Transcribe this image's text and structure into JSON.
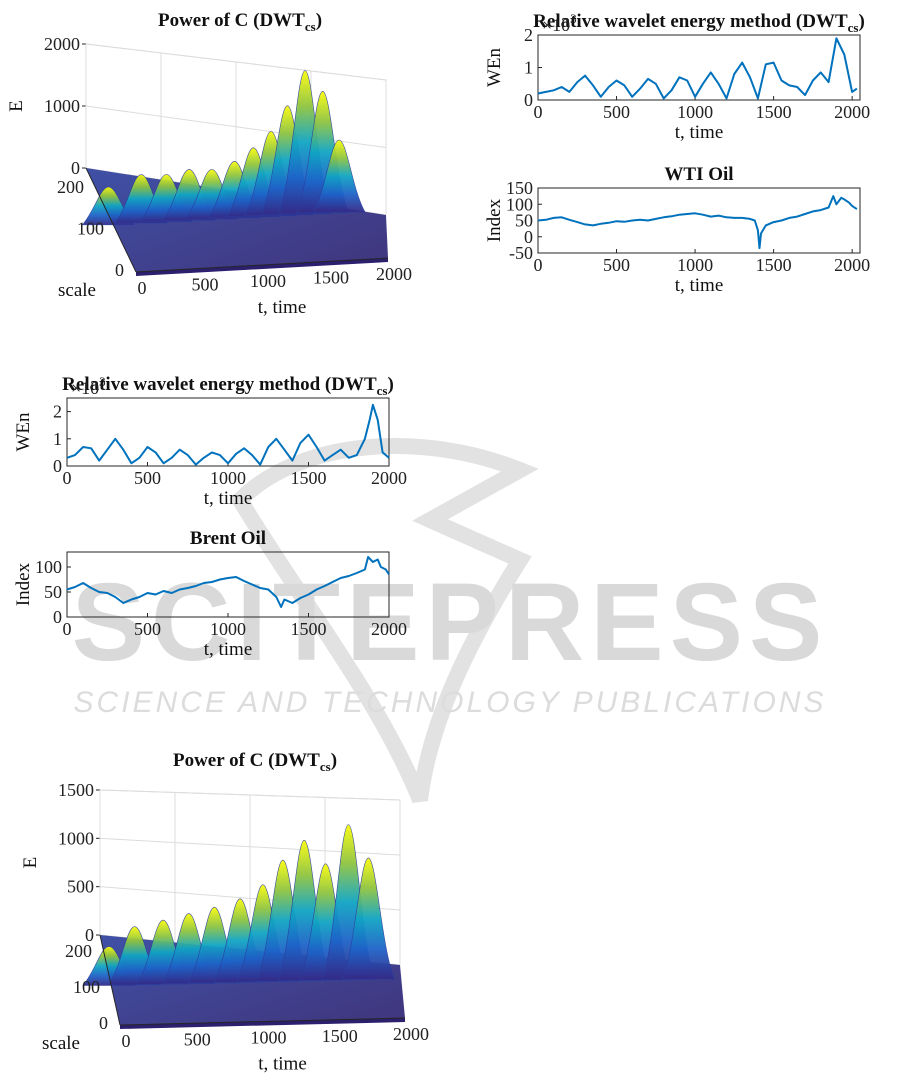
{
  "watermark": {
    "main": "SCITEPRESS",
    "sub": "SCIENCE AND TECHNOLOGY PUBLICATIONS"
  },
  "chart_data": [
    {
      "id": "surf1",
      "type": "surface",
      "title_main": "Power of C (DWT",
      "title_sub": "cs",
      "title_end": ")",
      "xlabel": "t, time",
      "ylabel": "scale",
      "zlabel": "E",
      "x_ticks": [
        "0",
        "500",
        "1000",
        "1500",
        "2000"
      ],
      "y_ticks": [
        "0",
        "100",
        "200"
      ],
      "z_ticks": [
        "0",
        "1000",
        "2000"
      ],
      "xlim": [
        0,
        2000
      ],
      "zlim": [
        0,
        2000
      ],
      "peaks": [
        {
          "t": 0,
          "E": 450
        },
        {
          "t": 260,
          "E": 620
        },
        {
          "t": 460,
          "E": 600
        },
        {
          "t": 640,
          "E": 660
        },
        {
          "t": 820,
          "E": 640
        },
        {
          "t": 1000,
          "E": 750
        },
        {
          "t": 1150,
          "E": 950
        },
        {
          "t": 1290,
          "E": 1200
        },
        {
          "t": 1420,
          "E": 1600
        },
        {
          "t": 1560,
          "E": 2150
        },
        {
          "t": 1700,
          "E": 1800
        },
        {
          "t": 1830,
          "E": 1000
        }
      ]
    },
    {
      "id": "wen_wti",
      "type": "line",
      "title_main": "Relative wavelet energy method (DWT",
      "title_sub": "cs",
      "title_end": ")",
      "exponent": "×10",
      "exponent_power": "3",
      "xlabel": "t, time",
      "ylabel": "WEn",
      "x_ticks": [
        "0",
        "500",
        "1000",
        "1500",
        "2000"
      ],
      "y_ticks": [
        "0",
        "1",
        "2"
      ],
      "xlim": [
        0,
        2050
      ],
      "ylim": [
        0,
        2
      ],
      "x": [
        0,
        50,
        100,
        150,
        200,
        250,
        300,
        350,
        400,
        450,
        500,
        550,
        600,
        650,
        700,
        750,
        800,
        850,
        900,
        950,
        1000,
        1050,
        1100,
        1150,
        1200,
        1250,
        1300,
        1350,
        1400,
        1450,
        1500,
        1550,
        1600,
        1650,
        1700,
        1750,
        1800,
        1850,
        1900,
        1950,
        2000,
        2030
      ],
      "y": [
        0.2,
        0.25,
        0.3,
        0.4,
        0.25,
        0.55,
        0.75,
        0.45,
        0.1,
        0.4,
        0.6,
        0.45,
        0.1,
        0.35,
        0.65,
        0.5,
        0.05,
        0.3,
        0.7,
        0.6,
        0.1,
        0.5,
        0.85,
        0.5,
        0.05,
        0.8,
        1.15,
        0.7,
        0.05,
        1.1,
        1.15,
        0.6,
        0.45,
        0.4,
        0.15,
        0.6,
        0.85,
        0.55,
        1.9,
        1.4,
        0.25,
        0.35
      ]
    },
    {
      "id": "wti",
      "type": "line",
      "title_main": "WTI Oil",
      "xlabel": "t, time",
      "ylabel": "Index",
      "x_ticks": [
        "0",
        "500",
        "1000",
        "1500",
        "2000"
      ],
      "y_ticks": [
        "-50",
        "0",
        "50",
        "100",
        "150"
      ],
      "xlim": [
        0,
        2050
      ],
      "ylim": [
        -50,
        150
      ],
      "x": [
        0,
        50,
        100,
        150,
        200,
        250,
        300,
        350,
        400,
        450,
        500,
        550,
        600,
        650,
        700,
        750,
        800,
        850,
        900,
        950,
        1000,
        1050,
        1100,
        1150,
        1200,
        1250,
        1300,
        1350,
        1380,
        1400,
        1410,
        1420,
        1450,
        1500,
        1550,
        1600,
        1650,
        1700,
        1750,
        1800,
        1850,
        1880,
        1900,
        1930,
        1950,
        1980,
        2000,
        2030
      ],
      "y": [
        50,
        52,
        58,
        60,
        52,
        45,
        38,
        35,
        40,
        43,
        48,
        46,
        50,
        52,
        50,
        55,
        60,
        63,
        68,
        70,
        72,
        68,
        62,
        65,
        60,
        58,
        58,
        55,
        50,
        20,
        -35,
        10,
        35,
        45,
        50,
        58,
        62,
        70,
        78,
        82,
        90,
        125,
        100,
        120,
        115,
        105,
        95,
        85
      ]
    },
    {
      "id": "wen_brent",
      "type": "line",
      "title_main": "Relative wavelet energy method (DWT",
      "title_sub": "cs",
      "title_end": ")",
      "exponent": "×10",
      "exponent_power": "3",
      "xlabel": "t, time",
      "ylabel": "WEn",
      "x_ticks": [
        "0",
        "500",
        "1000",
        "1500",
        "2000"
      ],
      "y_ticks": [
        "0",
        "1",
        "2"
      ],
      "xlim": [
        0,
        2000
      ],
      "ylim": [
        0,
        2.5
      ],
      "x": [
        0,
        50,
        100,
        150,
        200,
        250,
        300,
        350,
        400,
        450,
        500,
        550,
        600,
        650,
        700,
        750,
        800,
        850,
        900,
        950,
        1000,
        1050,
        1100,
        1150,
        1200,
        1250,
        1300,
        1350,
        1400,
        1450,
        1500,
        1550,
        1600,
        1650,
        1700,
        1750,
        1800,
        1850,
        1880,
        1900,
        1930,
        1960,
        2000
      ],
      "y": [
        0.3,
        0.4,
        0.7,
        0.65,
        0.2,
        0.6,
        1.0,
        0.6,
        0.1,
        0.3,
        0.7,
        0.5,
        0.1,
        0.3,
        0.6,
        0.4,
        0.05,
        0.3,
        0.5,
        0.4,
        0.1,
        0.45,
        0.65,
        0.4,
        0.05,
        0.7,
        1.0,
        0.6,
        0.2,
        0.85,
        1.15,
        0.7,
        0.2,
        0.4,
        0.6,
        0.3,
        0.4,
        1.0,
        1.7,
        2.25,
        1.7,
        0.5,
        0.3
      ]
    },
    {
      "id": "brent",
      "type": "line",
      "title_main": "Brent Oil",
      "xlabel": "t, time",
      "ylabel": "Index",
      "x_ticks": [
        "0",
        "500",
        "1000",
        "1500",
        "2000"
      ],
      "y_ticks": [
        "0",
        "50",
        "100"
      ],
      "xlim": [
        0,
        2000
      ],
      "ylim": [
        0,
        130
      ],
      "x": [
        0,
        50,
        100,
        150,
        200,
        250,
        300,
        350,
        400,
        450,
        500,
        550,
        600,
        650,
        700,
        750,
        800,
        850,
        900,
        950,
        1000,
        1050,
        1100,
        1150,
        1200,
        1250,
        1300,
        1330,
        1350,
        1400,
        1450,
        1500,
        1550,
        1600,
        1650,
        1700,
        1750,
        1800,
        1850,
        1870,
        1900,
        1930,
        1950,
        1980,
        2000
      ],
      "y": [
        55,
        60,
        68,
        58,
        50,
        48,
        40,
        28,
        35,
        40,
        48,
        45,
        52,
        48,
        55,
        58,
        62,
        68,
        70,
        75,
        78,
        80,
        72,
        65,
        58,
        55,
        40,
        20,
        35,
        28,
        38,
        45,
        55,
        62,
        70,
        78,
        82,
        88,
        95,
        120,
        110,
        115,
        100,
        95,
        85
      ]
    },
    {
      "id": "surf2",
      "type": "surface",
      "title_main": "Power of C (DWT",
      "title_sub": "cs",
      "title_end": ")",
      "xlabel": "t, time",
      "ylabel": "scale",
      "zlabel": "E",
      "x_ticks": [
        "0",
        "500",
        "1000",
        "1500",
        "2000"
      ],
      "y_ticks": [
        "0",
        "100",
        "200"
      ],
      "z_ticks": [
        "0",
        "500",
        "1000",
        "1500"
      ],
      "xlim": [
        0,
        2000
      ],
      "zlim": [
        0,
        1500
      ],
      "peaks": [
        {
          "t": 0,
          "E": 300
        },
        {
          "t": 180,
          "E": 500
        },
        {
          "t": 380,
          "E": 560
        },
        {
          "t": 560,
          "E": 620
        },
        {
          "t": 740,
          "E": 680
        },
        {
          "t": 920,
          "E": 760
        },
        {
          "t": 1080,
          "E": 900
        },
        {
          "t": 1220,
          "E": 1150
        },
        {
          "t": 1370,
          "E": 1350
        },
        {
          "t": 1520,
          "E": 1100
        },
        {
          "t": 1680,
          "E": 1500
        },
        {
          "t": 1820,
          "E": 1150
        }
      ]
    }
  ]
}
